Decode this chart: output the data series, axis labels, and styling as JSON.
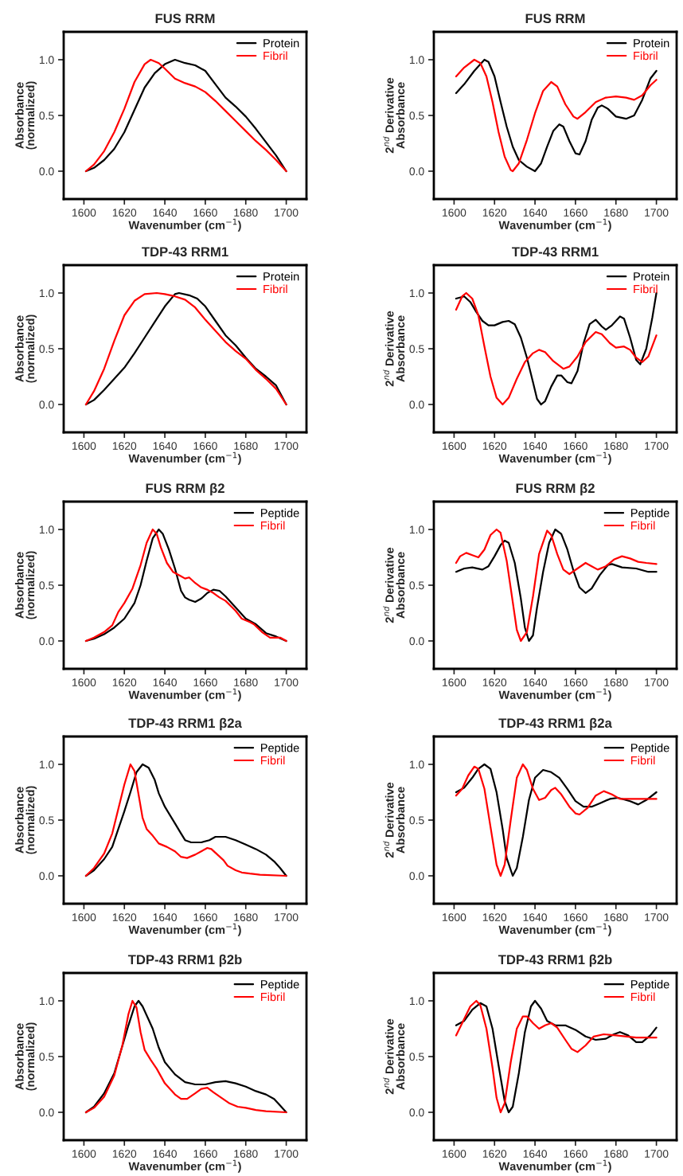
{
  "chart_data": [
    {
      "type": "line",
      "title": "FUS RRM",
      "xlabel": "Wavenumber (cm$^{−1}$)",
      "ylabel": "Absorbance\n(normalized)",
      "xlim": [
        1590,
        1710
      ],
      "xticks": [
        1600,
        1620,
        1640,
        1660,
        1680,
        1700
      ],
      "ylim": [
        -0.25,
        1.25
      ],
      "yticks": [
        {
          "value": 0,
          "label": "0.0"
        },
        {
          "value": 0.5,
          "label": "0.5"
        },
        {
          "value": 1,
          "label": "1.0"
        }
      ],
      "legend": "top right",
      "grid": false,
      "series": [
        {
          "name": "Protein",
          "color": "#000000",
          "x": [
            1601,
            1605,
            1610,
            1615,
            1620,
            1625,
            1630,
            1635,
            1640,
            1645,
            1650,
            1655,
            1660,
            1665,
            1670,
            1675,
            1680,
            1685,
            1690,
            1695,
            1700
          ],
          "values": [
            0,
            0.03,
            0.1,
            0.2,
            0.35,
            0.55,
            0.75,
            0.88,
            0.96,
            1.0,
            0.97,
            0.95,
            0.9,
            0.78,
            0.66,
            0.58,
            0.49,
            0.38,
            0.26,
            0.14,
            0
          ]
        },
        {
          "name": "Fibril",
          "color": "#ff0000",
          "x": [
            1601,
            1605,
            1610,
            1615,
            1620,
            1625,
            1630,
            1633,
            1637,
            1640,
            1645,
            1650,
            1655,
            1660,
            1665,
            1670,
            1675,
            1680,
            1685,
            1690,
            1695,
            1700
          ],
          "values": [
            0,
            0.06,
            0.18,
            0.35,
            0.56,
            0.8,
            0.96,
            1.0,
            0.97,
            0.92,
            0.83,
            0.79,
            0.76,
            0.71,
            0.63,
            0.54,
            0.45,
            0.36,
            0.27,
            0.19,
            0.1,
            0
          ]
        }
      ]
    },
    {
      "type": "line",
      "title": "FUS RRM",
      "xlabel": "Wavenumber (cm$^{−1}$)",
      "ylabel": "2$^{nd}$ Derivative\nAbsorbance",
      "xlim": [
        1590,
        1710
      ],
      "xticks": [
        1600,
        1620,
        1640,
        1660,
        1680,
        1700
      ],
      "ylim": [
        -0.25,
        1.25
      ],
      "yticks": [
        {
          "value": 0,
          "label": "0.0"
        },
        {
          "value": 0.5,
          "label": "0.5"
        },
        {
          "value": 1,
          "label": "1.0"
        }
      ],
      "legend": "top right",
      "grid": false,
      "series": [
        {
          "name": "Protein",
          "color": "#000000",
          "x": [
            1601,
            1605,
            1610,
            1615,
            1617,
            1620,
            1623,
            1626,
            1629,
            1632,
            1636,
            1640,
            1643,
            1646,
            1649,
            1652,
            1654,
            1657,
            1660,
            1662,
            1665,
            1668,
            1671,
            1673,
            1676,
            1680,
            1685,
            1689,
            1693,
            1697,
            1700
          ],
          "values": [
            0.7,
            0.78,
            0.9,
            1.0,
            0.98,
            0.85,
            0.62,
            0.4,
            0.22,
            0.1,
            0.04,
            0,
            0.07,
            0.22,
            0.36,
            0.42,
            0.4,
            0.27,
            0.16,
            0.15,
            0.27,
            0.46,
            0.57,
            0.59,
            0.56,
            0.49,
            0.47,
            0.5,
            0.64,
            0.83,
            0.9
          ]
        },
        {
          "name": "Fibril",
          "color": "#ff0000",
          "x": [
            1601,
            1605,
            1610,
            1613,
            1616,
            1619,
            1622,
            1625,
            1628,
            1629,
            1632,
            1636,
            1640,
            1644,
            1648,
            1651,
            1655,
            1659,
            1661,
            1665,
            1670,
            1675,
            1680,
            1685,
            1689,
            1693,
            1697,
            1700
          ],
          "values": [
            0.85,
            0.93,
            1.0,
            0.97,
            0.85,
            0.62,
            0.35,
            0.13,
            0.01,
            0,
            0.07,
            0.28,
            0.52,
            0.72,
            0.8,
            0.76,
            0.6,
            0.49,
            0.47,
            0.53,
            0.62,
            0.66,
            0.67,
            0.66,
            0.64,
            0.68,
            0.77,
            0.82
          ]
        }
      ]
    },
    {
      "type": "line",
      "title": "TDP-43 RRM1",
      "xlabel": "Wavenumber (cm$^{−1}$)",
      "ylabel": "Absorbance\n(normalized)",
      "xlim": [
        1590,
        1710
      ],
      "xticks": [
        1600,
        1620,
        1640,
        1660,
        1680,
        1700
      ],
      "ylim": [
        -0.25,
        1.25
      ],
      "yticks": [
        {
          "value": 0,
          "label": "0.0"
        },
        {
          "value": 0.5,
          "label": "0.5"
        },
        {
          "value": 1,
          "label": "1.0"
        }
      ],
      "legend": "top right",
      "grid": false,
      "series": [
        {
          "name": "Protein",
          "color": "#000000",
          "x": [
            1601,
            1605,
            1610,
            1615,
            1620,
            1625,
            1630,
            1635,
            1640,
            1645,
            1647,
            1652,
            1656,
            1660,
            1665,
            1670,
            1675,
            1680,
            1685,
            1690,
            1695,
            1700
          ],
          "values": [
            0,
            0.04,
            0.13,
            0.23,
            0.33,
            0.46,
            0.6,
            0.74,
            0.88,
            0.99,
            1.0,
            0.98,
            0.95,
            0.88,
            0.75,
            0.62,
            0.53,
            0.42,
            0.32,
            0.25,
            0.17,
            0
          ]
        },
        {
          "name": "Fibril",
          "color": "#ff0000",
          "x": [
            1601,
            1605,
            1610,
            1615,
            1620,
            1625,
            1630,
            1636,
            1640,
            1645,
            1650,
            1655,
            1660,
            1665,
            1670,
            1675,
            1680,
            1685,
            1690,
            1695,
            1700
          ],
          "values": [
            0,
            0.12,
            0.32,
            0.57,
            0.8,
            0.93,
            0.99,
            1.0,
            0.99,
            0.97,
            0.94,
            0.87,
            0.76,
            0.66,
            0.56,
            0.48,
            0.41,
            0.31,
            0.23,
            0.14,
            0
          ]
        }
      ]
    },
    {
      "type": "line",
      "title": "TDP-43 RRM1",
      "xlabel": "Wavenumber (cm$^{−1}$)",
      "ylabel": "2$^{nd}$ Derivative\nAbsorbance",
      "xlim": [
        1590,
        1710
      ],
      "xticks": [
        1600,
        1620,
        1640,
        1660,
        1680,
        1700
      ],
      "ylim": [
        -0.25,
        1.25
      ],
      "yticks": [
        {
          "value": 0,
          "label": "0.0"
        },
        {
          "value": 0.5,
          "label": "0.5"
        },
        {
          "value": 1,
          "label": "1.0"
        }
      ],
      "legend": "top right",
      "grid": false,
      "series": [
        {
          "name": "Protein",
          "color": "#000000",
          "x": [
            1601,
            1605,
            1608,
            1611,
            1614,
            1617,
            1620,
            1624,
            1627,
            1630,
            1633,
            1636,
            1639,
            1641,
            1643,
            1645,
            1648,
            1651,
            1653,
            1656,
            1658,
            1661,
            1664,
            1667,
            1670,
            1673,
            1675,
            1678,
            1682,
            1684,
            1687,
            1690,
            1692,
            1695,
            1698,
            1700
          ],
          "values": [
            0.95,
            0.97,
            0.92,
            0.83,
            0.75,
            0.71,
            0.71,
            0.74,
            0.75,
            0.72,
            0.6,
            0.42,
            0.2,
            0.05,
            0,
            0.03,
            0.16,
            0.26,
            0.26,
            0.2,
            0.19,
            0.3,
            0.55,
            0.72,
            0.76,
            0.7,
            0.67,
            0.71,
            0.79,
            0.77,
            0.6,
            0.4,
            0.36,
            0.5,
            0.78,
            1.0
          ]
        },
        {
          "name": "Fibril",
          "color": "#ff0000",
          "x": [
            1601,
            1604,
            1606,
            1609,
            1612,
            1615,
            1618,
            1621,
            1624,
            1627,
            1631,
            1635,
            1639,
            1642,
            1645,
            1649,
            1654,
            1657,
            1661,
            1665,
            1670,
            1673,
            1677,
            1680,
            1684,
            1687,
            1690,
            1693,
            1696,
            1700
          ],
          "values": [
            0.85,
            0.97,
            1.0,
            0.95,
            0.8,
            0.52,
            0.25,
            0.06,
            0,
            0.06,
            0.23,
            0.38,
            0.46,
            0.49,
            0.47,
            0.39,
            0.32,
            0.34,
            0.43,
            0.56,
            0.65,
            0.63,
            0.55,
            0.51,
            0.52,
            0.49,
            0.42,
            0.38,
            0.43,
            0.62
          ]
        }
      ]
    },
    {
      "type": "line",
      "title": "FUS RRM β2",
      "xlabel": "Wavenumber (cm$^{−1}$)",
      "ylabel": "Absorbance\n(normalized)",
      "xlim": [
        1590,
        1710
      ],
      "xticks": [
        1600,
        1620,
        1640,
        1660,
        1680,
        1700
      ],
      "ylim": [
        -0.25,
        1.25
      ],
      "yticks": [
        {
          "value": 0,
          "label": "0.0"
        },
        {
          "value": 0.5,
          "label": "0.5"
        },
        {
          "value": 1,
          "label": "1.0"
        }
      ],
      "legend": "top right",
      "grid": false,
      "series": [
        {
          "name": "Peptide",
          "color": "#000000",
          "x": [
            1601,
            1605,
            1610,
            1615,
            1620,
            1625,
            1628,
            1631,
            1634,
            1637,
            1639,
            1642,
            1645,
            1648,
            1650,
            1652,
            1655,
            1658,
            1661,
            1664,
            1667,
            1670,
            1675,
            1680,
            1685,
            1690,
            1695,
            1700
          ],
          "values": [
            0,
            0.02,
            0.06,
            0.12,
            0.2,
            0.34,
            0.5,
            0.72,
            0.92,
            1.0,
            0.96,
            0.82,
            0.65,
            0.45,
            0.39,
            0.37,
            0.35,
            0.38,
            0.43,
            0.46,
            0.45,
            0.4,
            0.3,
            0.2,
            0.15,
            0.07,
            0.04,
            0
          ]
        },
        {
          "name": "Fibril",
          "color": "#ff0000",
          "x": [
            1601,
            1605,
            1610,
            1614,
            1617,
            1620,
            1624,
            1628,
            1631,
            1634,
            1636,
            1638,
            1641,
            1644,
            1648,
            1650,
            1652,
            1655,
            1658,
            1661,
            1664,
            1667,
            1670,
            1675,
            1678,
            1682,
            1684,
            1688,
            1692,
            1697,
            1700
          ],
          "values": [
            0,
            0.03,
            0.08,
            0.14,
            0.26,
            0.34,
            0.47,
            0.68,
            0.88,
            1.0,
            0.96,
            0.84,
            0.7,
            0.62,
            0.58,
            0.56,
            0.57,
            0.52,
            0.48,
            0.46,
            0.43,
            0.39,
            0.36,
            0.27,
            0.2,
            0.17,
            0.15,
            0.08,
            0.03,
            0.03,
            0
          ]
        }
      ]
    },
    {
      "type": "line",
      "title": "FUS RRM β2",
      "xlabel": "Wavenumber (cm$^{−1}$)",
      "ylabel": "2$^{nd}$ Derivative\nAbsorbance",
      "xlim": [
        1590,
        1710
      ],
      "xticks": [
        1600,
        1620,
        1640,
        1660,
        1680,
        1700
      ],
      "ylim": [
        -0.25,
        1.25
      ],
      "yticks": [
        {
          "value": 0,
          "label": "0.0"
        },
        {
          "value": 0.5,
          "label": "0.5"
        },
        {
          "value": 1,
          "label": "1.0"
        }
      ],
      "legend": "top right",
      "grid": false,
      "series": [
        {
          "name": "Peptide",
          "color": "#000000",
          "x": [
            1601,
            1605,
            1609,
            1614,
            1617,
            1620,
            1623,
            1625,
            1627,
            1630,
            1633,
            1635,
            1637,
            1639,
            1641,
            1644,
            1647,
            1650,
            1653,
            1656,
            1659,
            1662,
            1665,
            1668,
            1672,
            1676,
            1678,
            1683,
            1690,
            1696,
            1700
          ],
          "values": [
            0.62,
            0.65,
            0.66,
            0.64,
            0.67,
            0.76,
            0.86,
            0.9,
            0.88,
            0.7,
            0.38,
            0.12,
            0,
            0.05,
            0.3,
            0.62,
            0.88,
            1.0,
            0.96,
            0.82,
            0.63,
            0.48,
            0.43,
            0.47,
            0.59,
            0.68,
            0.69,
            0.66,
            0.65,
            0.62,
            0.62
          ]
        },
        {
          "name": "Fibril",
          "color": "#ff0000",
          "x": [
            1601,
            1603,
            1606,
            1609,
            1612,
            1615,
            1618,
            1621,
            1623,
            1626,
            1629,
            1631,
            1633,
            1636,
            1639,
            1642,
            1646,
            1648,
            1651,
            1654,
            1657,
            1661,
            1665,
            1668,
            1671,
            1675,
            1679,
            1683,
            1687,
            1691,
            1695,
            1700
          ],
          "values": [
            0.7,
            0.76,
            0.79,
            0.77,
            0.75,
            0.82,
            0.95,
            1.0,
            0.97,
            0.72,
            0.35,
            0.1,
            0,
            0.08,
            0.4,
            0.78,
            0.99,
            0.95,
            0.78,
            0.64,
            0.6,
            0.65,
            0.7,
            0.67,
            0.64,
            0.67,
            0.73,
            0.76,
            0.74,
            0.71,
            0.7,
            0.69
          ]
        }
      ]
    },
    {
      "type": "line",
      "title": "TDP-43 RRM1 β2a",
      "xlabel": "Wavenumber (cm$^{−1}$)",
      "ylabel": "Absorbance\n(normalized)",
      "xlim": [
        1590,
        1710
      ],
      "xticks": [
        1600,
        1620,
        1640,
        1660,
        1680,
        1700
      ],
      "ylim": [
        -0.25,
        1.25
      ],
      "yticks": [
        {
          "value": 0,
          "label": "0.0"
        },
        {
          "value": 0.5,
          "label": "0.5"
        },
        {
          "value": 1,
          "label": "1.0"
        }
      ],
      "legend": "top right",
      "grid": false,
      "series": [
        {
          "name": "Peptide",
          "color": "#000000",
          "x": [
            1601,
            1605,
            1610,
            1614,
            1617,
            1620,
            1623,
            1626,
            1629,
            1632,
            1635,
            1637,
            1640,
            1645,
            1648,
            1650,
            1653,
            1658,
            1662,
            1665,
            1670,
            1675,
            1680,
            1685,
            1690,
            1694,
            1697,
            1700
          ],
          "values": [
            0,
            0.05,
            0.15,
            0.26,
            0.42,
            0.58,
            0.75,
            0.93,
            1.0,
            0.97,
            0.86,
            0.74,
            0.62,
            0.47,
            0.38,
            0.32,
            0.3,
            0.3,
            0.32,
            0.35,
            0.35,
            0.32,
            0.28,
            0.24,
            0.19,
            0.13,
            0.07,
            0
          ]
        },
        {
          "name": "Fibril",
          "color": "#ff0000",
          "x": [
            1601,
            1605,
            1610,
            1614,
            1617,
            1620,
            1623,
            1625,
            1627,
            1629,
            1631,
            1634,
            1637,
            1641,
            1645,
            1648,
            1651,
            1655,
            1658,
            1661,
            1663,
            1666,
            1669,
            1671,
            1675,
            1678,
            1682,
            1687,
            1700
          ],
          "values": [
            0,
            0.07,
            0.2,
            0.38,
            0.6,
            0.82,
            1.0,
            0.94,
            0.73,
            0.52,
            0.42,
            0.36,
            0.29,
            0.26,
            0.22,
            0.17,
            0.16,
            0.19,
            0.22,
            0.25,
            0.24,
            0.19,
            0.14,
            0.09,
            0.05,
            0.03,
            0.02,
            0.01,
            0
          ]
        }
      ]
    },
    {
      "type": "line",
      "title": "TDP-43 RRM1 β2a",
      "xlabel": "Wavenumber (cm$^{−1}$)",
      "ylabel": "2$^{nd}$ Derivative\nAbsorbance",
      "xlim": [
        1590,
        1710
      ],
      "xticks": [
        1600,
        1620,
        1640,
        1660,
        1680,
        1700
      ],
      "ylim": [
        -0.25,
        1.25
      ],
      "yticks": [
        {
          "value": 0,
          "label": "0.0"
        },
        {
          "value": 0.5,
          "label": "0.5"
        },
        {
          "value": 1,
          "label": "1.0"
        }
      ],
      "legend": "top right",
      "grid": false,
      "series": [
        {
          "name": "Peptide",
          "color": "#000000",
          "x": [
            1601,
            1605,
            1609,
            1612,
            1615,
            1618,
            1621,
            1624,
            1626,
            1629,
            1631,
            1634,
            1637,
            1640,
            1644,
            1648,
            1652,
            1656,
            1660,
            1664,
            1668,
            1672,
            1677,
            1681,
            1687,
            1691,
            1695,
            1700
          ],
          "values": [
            0.75,
            0.79,
            0.88,
            0.96,
            1.0,
            0.96,
            0.75,
            0.42,
            0.16,
            0,
            0.07,
            0.35,
            0.68,
            0.88,
            0.95,
            0.93,
            0.88,
            0.78,
            0.67,
            0.62,
            0.62,
            0.65,
            0.69,
            0.7,
            0.67,
            0.64,
            0.68,
            0.75
          ]
        },
        {
          "name": "Fibril",
          "color": "#ff0000",
          "x": [
            1601,
            1604,
            1607,
            1610,
            1612,
            1615,
            1618,
            1621,
            1623,
            1625,
            1628,
            1631,
            1634,
            1636,
            1639,
            1642,
            1645,
            1648,
            1650,
            1653,
            1657,
            1660,
            1662,
            1666,
            1670,
            1674,
            1678,
            1682,
            1690,
            1700
          ],
          "values": [
            0.72,
            0.78,
            0.9,
            0.98,
            0.96,
            0.78,
            0.44,
            0.1,
            0,
            0.1,
            0.5,
            0.88,
            1.0,
            0.95,
            0.78,
            0.68,
            0.7,
            0.77,
            0.79,
            0.73,
            0.62,
            0.56,
            0.55,
            0.61,
            0.72,
            0.76,
            0.73,
            0.69,
            0.69,
            0.69
          ]
        }
      ]
    },
    {
      "type": "line",
      "title": "TDP-43 RRM1 β2b",
      "xlabel": "Wavenumber (cm$^{−1}$)",
      "ylabel": "Absorbance\n(normalized)",
      "xlim": [
        1590,
        1710
      ],
      "xticks": [
        1600,
        1620,
        1640,
        1660,
        1680,
        1700
      ],
      "ylim": [
        -0.25,
        1.25
      ],
      "yticks": [
        {
          "value": 0,
          "label": "0.0"
        },
        {
          "value": 0.5,
          "label": "0.5"
        },
        {
          "value": 1,
          "label": "1.0"
        }
      ],
      "legend": "top right",
      "grid": false,
      "series": [
        {
          "name": "Peptide",
          "color": "#000000",
          "x": [
            1601,
            1605,
            1610,
            1615,
            1622,
            1625,
            1627,
            1629,
            1632,
            1634,
            1637,
            1640,
            1645,
            1650,
            1655,
            1660,
            1665,
            1670,
            1675,
            1680,
            1685,
            1690,
            1694,
            1697,
            1700
          ],
          "values": [
            0,
            0.05,
            0.17,
            0.35,
            0.78,
            0.95,
            1.0,
            0.95,
            0.83,
            0.75,
            0.58,
            0.45,
            0.34,
            0.27,
            0.25,
            0.25,
            0.27,
            0.28,
            0.26,
            0.23,
            0.19,
            0.16,
            0.12,
            0.06,
            0
          ]
        },
        {
          "name": "Fibril",
          "color": "#ff0000",
          "x": [
            1601,
            1605,
            1610,
            1615,
            1619,
            1622,
            1624,
            1626,
            1628,
            1630,
            1633,
            1636,
            1640,
            1645,
            1648,
            1651,
            1655,
            1658,
            1661,
            1664,
            1668,
            1672,
            1676,
            1680,
            1685,
            1690,
            1700
          ],
          "values": [
            0,
            0.04,
            0.14,
            0.33,
            0.6,
            0.88,
            1.0,
            0.94,
            0.72,
            0.56,
            0.47,
            0.39,
            0.26,
            0.16,
            0.12,
            0.12,
            0.17,
            0.21,
            0.22,
            0.18,
            0.13,
            0.08,
            0.05,
            0.04,
            0.02,
            0.01,
            0
          ]
        }
      ]
    },
    {
      "type": "line",
      "title": "TDP-43 RRM1 β2b",
      "xlabel": "Wavenumber (cm$^{−1}$)",
      "ylabel": "2$^{nd}$ Derivative\nAbsorbance",
      "xlim": [
        1590,
        1710
      ],
      "xticks": [
        1600,
        1620,
        1640,
        1660,
        1680,
        1700
      ],
      "ylim": [
        -0.25,
        1.25
      ],
      "yticks": [
        {
          "value": 0,
          "label": "0.0"
        },
        {
          "value": 0.5,
          "label": "0.5"
        },
        {
          "value": 1,
          "label": "1.0"
        }
      ],
      "legend": "top right",
      "grid": false,
      "series": [
        {
          "name": "Peptide",
          "color": "#000000",
          "x": [
            1601,
            1605,
            1609,
            1613,
            1616,
            1619,
            1622,
            1625,
            1627,
            1629,
            1632,
            1635,
            1638,
            1640,
            1643,
            1646,
            1650,
            1655,
            1660,
            1665,
            1670,
            1675,
            1679,
            1682,
            1686,
            1690,
            1693,
            1697,
            1700
          ],
          "values": [
            0.78,
            0.82,
            0.92,
            0.98,
            0.95,
            0.75,
            0.42,
            0.1,
            0,
            0.05,
            0.35,
            0.72,
            0.95,
            1.0,
            0.93,
            0.82,
            0.78,
            0.78,
            0.74,
            0.68,
            0.65,
            0.66,
            0.7,
            0.72,
            0.69,
            0.63,
            0.63,
            0.69,
            0.76
          ]
        },
        {
          "name": "Fibril",
          "color": "#ff0000",
          "x": [
            1601,
            1604,
            1608,
            1611,
            1613,
            1616,
            1619,
            1621,
            1623,
            1625,
            1628,
            1631,
            1634,
            1636,
            1639,
            1642,
            1645,
            1648,
            1651,
            1655,
            1658,
            1661,
            1665,
            1669,
            1674,
            1680,
            1690,
            1700
          ],
          "values": [
            0.69,
            0.8,
            0.95,
            1.0,
            0.96,
            0.75,
            0.4,
            0.13,
            0,
            0.08,
            0.45,
            0.75,
            0.86,
            0.86,
            0.8,
            0.75,
            0.78,
            0.8,
            0.76,
            0.65,
            0.57,
            0.54,
            0.6,
            0.68,
            0.7,
            0.69,
            0.67,
            0.67
          ]
        }
      ]
    }
  ]
}
